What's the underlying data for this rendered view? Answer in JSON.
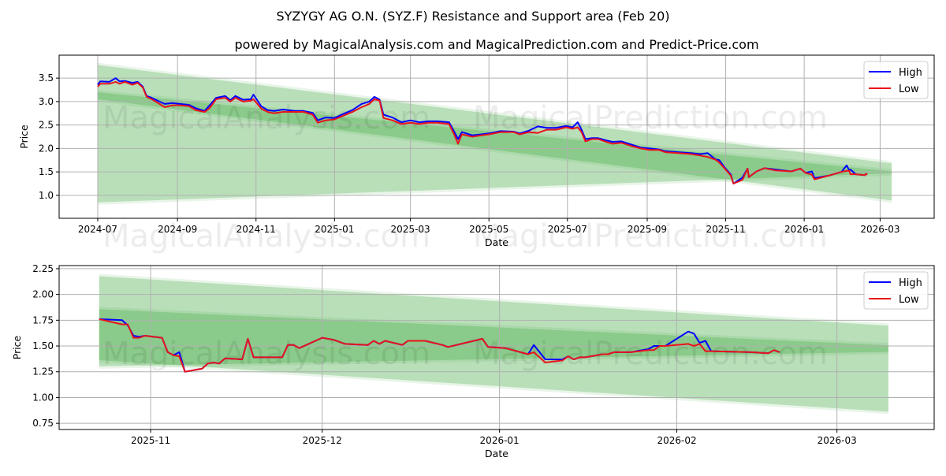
{
  "title": "SYZYGY AG O.N. (SYZ.F) Resistance and Support area (Feb 20)",
  "subtitle": "powered by MagicalAnalysis.com and MagicalPrediction.com and Predict-Price.com",
  "watermarks": [
    "MagicalAnalysis.com",
    "MagicalPrediction.com"
  ],
  "colors": {
    "high": "#0000ff",
    "low": "#e8141b",
    "band": "#2ca02c"
  },
  "chart_data": [
    {
      "type": "line",
      "xlabel": "Date",
      "ylabel": "Price",
      "xlim": [
        "2024-06-01",
        "2026-04-12"
      ],
      "ylim": [
        0.51,
        3.99
      ],
      "yticks": [
        1.0,
        1.5,
        2.0,
        2.5,
        3.0,
        3.5
      ],
      "ytick_labels": [
        "1.0",
        "1.5",
        "2.0",
        "2.5",
        "3.0",
        "3.5"
      ],
      "xticks": [
        "2024-07-01",
        "2024-09-01",
        "2024-11-01",
        "2025-01-01",
        "2025-03-01",
        "2025-05-01",
        "2025-07-01",
        "2025-09-01",
        "2025-11-01",
        "2026-01-01",
        "2026-03-01"
      ],
      "xtick_labels": [
        "2024-07",
        "2024-09",
        "2024-11",
        "2025-01",
        "2025-03",
        "2025-05",
        "2025-07",
        "2025-09",
        "2025-11",
        "2026-01",
        "2026-03"
      ],
      "grid": true,
      "legend": {
        "position": "top-right",
        "entries": [
          "High",
          "Low"
        ]
      },
      "bands": [
        {
          "name": "resistance",
          "start": "2024-07-01",
          "end": "2026-03-10",
          "top": [
            3.83,
            1.73
          ],
          "bottom": [
            3.0,
            0.84
          ]
        },
        {
          "name": "support",
          "start": "2024-07-01",
          "end": "2026-03-10",
          "top": [
            3.25,
            1.56
          ],
          "bottom": [
            0.8,
            1.42
          ]
        }
      ],
      "series_points": [
        [
          "2024-07-01",
          3.36,
          3.32
        ],
        [
          "2024-07-03",
          3.43,
          3.38
        ],
        [
          "2024-07-10",
          3.42,
          3.38
        ],
        [
          "2024-07-15",
          3.5,
          3.42
        ],
        [
          "2024-07-18",
          3.43,
          3.38
        ],
        [
          "2024-07-22",
          3.44,
          3.42
        ],
        [
          "2024-07-28",
          3.4,
          3.36
        ],
        [
          "2024-08-01",
          3.42,
          3.4
        ],
        [
          "2024-08-05",
          3.32,
          3.3
        ],
        [
          "2024-08-08",
          3.12,
          3.1
        ],
        [
          "2024-08-12",
          3.08,
          3.05
        ],
        [
          "2024-08-18",
          3.0,
          2.95
        ],
        [
          "2024-08-22",
          2.95,
          2.88
        ],
        [
          "2024-08-28",
          2.97,
          2.92
        ],
        [
          "2024-09-03",
          2.95,
          2.92
        ],
        [
          "2024-09-10",
          2.93,
          2.9
        ],
        [
          "2024-09-15",
          2.86,
          2.82
        ],
        [
          "2024-09-22",
          2.8,
          2.78
        ],
        [
          "2024-09-26",
          2.92,
          2.86
        ],
        [
          "2024-10-01",
          3.08,
          3.05
        ],
        [
          "2024-10-08",
          3.12,
          3.08
        ],
        [
          "2024-10-12",
          3.03,
          3.0
        ],
        [
          "2024-10-16",
          3.12,
          3.08
        ],
        [
          "2024-10-22",
          3.04,
          3.0
        ],
        [
          "2024-10-28",
          3.05,
          3.02
        ],
        [
          "2024-10-30",
          3.15,
          3.05
        ],
        [
          "2024-11-05",
          2.9,
          2.85
        ],
        [
          "2024-11-10",
          2.82,
          2.78
        ],
        [
          "2024-11-15",
          2.8,
          2.75
        ],
        [
          "2024-11-22",
          2.83,
          2.78
        ],
        [
          "2024-12-01",
          2.8,
          2.78
        ],
        [
          "2024-12-08",
          2.8,
          2.78
        ],
        [
          "2024-12-15",
          2.76,
          2.72
        ],
        [
          "2024-12-19",
          2.6,
          2.55
        ],
        [
          "2024-12-25",
          2.66,
          2.6
        ],
        [
          "2025-01-01",
          2.65,
          2.62
        ],
        [
          "2025-01-08",
          2.74,
          2.7
        ],
        [
          "2025-01-15",
          2.82,
          2.78
        ],
        [
          "2025-01-22",
          2.95,
          2.88
        ],
        [
          "2025-01-28",
          3.0,
          2.95
        ],
        [
          "2025-02-01",
          3.1,
          3.05
        ],
        [
          "2025-02-05",
          3.04,
          3.02
        ],
        [
          "2025-02-08",
          2.72,
          2.65
        ],
        [
          "2025-02-15",
          2.66,
          2.6
        ],
        [
          "2025-02-22",
          2.56,
          2.52
        ],
        [
          "2025-03-01",
          2.6,
          2.55
        ],
        [
          "2025-03-08",
          2.56,
          2.52
        ],
        [
          "2025-03-15",
          2.58,
          2.55
        ],
        [
          "2025-03-22",
          2.58,
          2.55
        ],
        [
          "2025-03-31",
          2.56,
          2.52
        ],
        [
          "2025-04-04",
          2.36,
          2.3
        ],
        [
          "2025-04-07",
          2.2,
          2.1
        ],
        [
          "2025-04-10",
          2.35,
          2.3
        ],
        [
          "2025-04-18",
          2.28,
          2.25
        ],
        [
          "2025-04-25",
          2.3,
          2.28
        ],
        [
          "2025-05-01",
          2.32,
          2.3
        ],
        [
          "2025-05-10",
          2.37,
          2.35
        ],
        [
          "2025-05-20",
          2.36,
          2.35
        ],
        [
          "2025-05-25",
          2.32,
          2.3
        ],
        [
          "2025-06-01",
          2.38,
          2.35
        ],
        [
          "2025-06-08",
          2.47,
          2.33
        ],
        [
          "2025-06-15",
          2.44,
          2.4
        ],
        [
          "2025-06-22",
          2.44,
          2.4
        ],
        [
          "2025-06-30",
          2.48,
          2.45
        ],
        [
          "2025-07-05",
          2.45,
          2.42
        ],
        [
          "2025-07-09",
          2.56,
          2.45
        ],
        [
          "2025-07-12",
          2.4,
          2.35
        ],
        [
          "2025-07-15",
          2.2,
          2.15
        ],
        [
          "2025-07-20",
          2.22,
          2.2
        ],
        [
          "2025-07-25",
          2.22,
          2.2
        ],
        [
          "2025-07-30",
          2.18,
          2.15
        ],
        [
          "2025-08-05",
          2.14,
          2.1
        ],
        [
          "2025-08-12",
          2.15,
          2.12
        ],
        [
          "2025-08-20",
          2.08,
          2.05
        ],
        [
          "2025-08-27",
          2.02,
          2.0
        ],
        [
          "2025-09-03",
          2.0,
          1.97
        ],
        [
          "2025-09-10",
          1.98,
          1.97
        ],
        [
          "2025-09-15",
          1.94,
          1.92
        ],
        [
          "2025-09-25",
          1.92,
          1.9
        ],
        [
          "2025-10-05",
          1.9,
          1.88
        ],
        [
          "2025-10-12",
          1.88,
          1.85
        ],
        [
          "2025-10-18",
          1.9,
          1.82
        ],
        [
          "2025-10-24",
          1.77,
          1.76
        ],
        [
          "2025-10-27",
          1.75,
          1.7
        ],
        [
          "2025-10-31",
          1.6,
          1.58
        ],
        [
          "2025-11-05",
          1.44,
          1.42
        ],
        [
          "2025-11-07",
          1.25,
          1.25
        ],
        [
          "2025-11-14",
          1.38,
          1.33
        ],
        [
          "2025-11-18",
          1.57,
          1.57
        ],
        [
          "2025-11-19",
          1.39,
          1.39
        ],
        [
          "2025-11-25",
          1.51,
          1.51
        ],
        [
          "2025-12-01",
          1.58,
          1.58
        ],
        [
          "2025-12-10",
          1.55,
          1.53
        ],
        [
          "2025-12-22",
          1.51,
          1.51
        ],
        [
          "2025-12-29",
          1.57,
          1.57
        ],
        [
          "2026-01-02",
          1.48,
          1.48
        ],
        [
          "2026-01-07",
          1.51,
          1.44
        ],
        [
          "2026-01-09",
          1.37,
          1.34
        ],
        [
          "2026-01-20",
          1.42,
          1.42
        ],
        [
          "2026-01-30",
          1.5,
          1.5
        ],
        [
          "2026-02-03",
          1.64,
          1.52
        ],
        [
          "2026-02-05",
          1.53,
          1.52
        ],
        [
          "2026-02-06",
          1.55,
          1.45
        ],
        [
          "2026-02-10",
          1.45,
          1.45
        ],
        [
          "2026-02-17",
          1.43,
          1.43
        ],
        [
          "2026-02-18",
          1.46,
          1.46
        ],
        [
          "2026-02-19",
          1.44,
          1.44
        ]
      ]
    },
    {
      "type": "line",
      "xlabel": "Date",
      "ylabel": "Price",
      "xlim": [
        "2025-10-16",
        "2026-03-18"
      ],
      "ylim": [
        0.69,
        2.28
      ],
      "yticks": [
        0.75,
        1.0,
        1.25,
        1.5,
        1.75,
        2.0,
        2.25
      ],
      "ytick_labels": [
        "0.75",
        "1.00",
        "1.25",
        "1.50",
        "1.75",
        "2.00",
        "2.25"
      ],
      "xticks": [
        "2025-11-01",
        "2025-12-01",
        "2026-01-01",
        "2026-02-01",
        "2026-03-01"
      ],
      "xtick_labels": [
        "2025-11",
        "2025-12",
        "2026-01",
        "2026-02",
        "2026-03"
      ],
      "grid": true,
      "legend": {
        "position": "top-right",
        "entries": [
          "High",
          "Low"
        ]
      },
      "bands": [
        {
          "name": "resistance",
          "start": "2025-10-23",
          "end": "2026-03-10",
          "top": [
            2.2,
            1.72
          ],
          "bottom": [
            1.34,
            0.84
          ]
        },
        {
          "name": "support",
          "start": "2025-10-23",
          "end": "2026-03-10",
          "top": [
            1.88,
            1.53
          ],
          "bottom": [
            1.28,
            1.42
          ]
        }
      ],
      "series_points": [
        [
          "2025-10-23",
          1.76,
          1.76
        ],
        [
          "2025-10-27",
          1.75,
          1.71
        ],
        [
          "2025-10-28",
          1.7,
          1.71
        ],
        [
          "2025-10-29",
          1.6,
          1.58
        ],
        [
          "2025-10-30",
          1.59,
          1.58
        ],
        [
          "2025-10-31",
          1.6,
          1.6
        ],
        [
          "2025-11-03",
          1.58,
          1.58
        ],
        [
          "2025-11-04",
          1.44,
          1.44
        ],
        [
          "2025-11-05",
          1.41,
          1.41
        ],
        [
          "2025-11-06",
          1.44,
          1.4
        ],
        [
          "2025-11-07",
          1.25,
          1.25
        ],
        [
          "2025-11-10",
          1.28,
          1.28
        ],
        [
          "2025-11-11",
          1.33,
          1.33
        ],
        [
          "2025-11-12",
          1.34,
          1.34
        ],
        [
          "2025-11-13",
          1.33,
          1.33
        ],
        [
          "2025-11-14",
          1.38,
          1.38
        ],
        [
          "2025-11-17",
          1.37,
          1.37
        ],
        [
          "2025-11-18",
          1.57,
          1.57
        ],
        [
          "2025-11-19",
          1.39,
          1.39
        ],
        [
          "2025-11-24",
          1.39,
          1.39
        ],
        [
          "2025-11-25",
          1.51,
          1.51
        ],
        [
          "2025-11-26",
          1.51,
          1.51
        ],
        [
          "2025-11-27",
          1.48,
          1.48
        ],
        [
          "2025-12-01",
          1.58,
          1.58
        ],
        [
          "2025-12-03",
          1.56,
          1.56
        ],
        [
          "2025-12-05",
          1.52,
          1.52
        ],
        [
          "2025-12-09",
          1.51,
          1.51
        ],
        [
          "2025-12-10",
          1.55,
          1.55
        ],
        [
          "2025-12-11",
          1.52,
          1.52
        ],
        [
          "2025-12-12",
          1.55,
          1.55
        ],
        [
          "2025-12-15",
          1.51,
          1.51
        ],
        [
          "2025-12-16",
          1.55,
          1.55
        ],
        [
          "2025-12-19",
          1.55,
          1.55
        ],
        [
          "2025-12-22",
          1.51,
          1.51
        ],
        [
          "2025-12-23",
          1.49,
          1.49
        ],
        [
          "2025-12-29",
          1.57,
          1.57
        ],
        [
          "2025-12-30",
          1.49,
          1.49
        ],
        [
          "2026-01-02",
          1.48,
          1.48
        ],
        [
          "2026-01-06",
          1.42,
          1.42
        ],
        [
          "2026-01-07",
          1.51,
          1.44
        ],
        [
          "2026-01-09",
          1.37,
          1.34
        ],
        [
          "2026-01-12",
          1.37,
          1.36
        ],
        [
          "2026-01-13",
          1.4,
          1.4
        ],
        [
          "2026-01-14",
          1.37,
          1.37
        ],
        [
          "2026-01-15",
          1.39,
          1.39
        ],
        [
          "2026-01-16",
          1.39,
          1.39
        ],
        [
          "2026-01-19",
          1.42,
          1.42
        ],
        [
          "2026-01-20",
          1.42,
          1.42
        ],
        [
          "2026-01-21",
          1.44,
          1.44
        ],
        [
          "2026-01-24",
          1.44,
          1.44
        ],
        [
          "2026-01-27",
          1.47,
          1.46
        ],
        [
          "2026-01-28",
          1.5,
          1.46
        ],
        [
          "2026-01-29",
          1.5,
          1.5
        ],
        [
          "2026-01-30",
          1.5,
          1.5
        ],
        [
          "2026-02-03",
          1.64,
          1.52
        ],
        [
          "2026-02-04",
          1.62,
          1.5
        ],
        [
          "2026-02-05",
          1.53,
          1.52
        ],
        [
          "2026-02-06",
          1.55,
          1.45
        ],
        [
          "2026-02-07",
          1.45,
          1.45
        ],
        [
          "2026-02-14",
          1.44,
          1.44
        ],
        [
          "2026-02-17",
          1.43,
          1.43
        ],
        [
          "2026-02-18",
          1.46,
          1.46
        ],
        [
          "2026-02-19",
          1.44,
          1.44
        ]
      ]
    }
  ]
}
